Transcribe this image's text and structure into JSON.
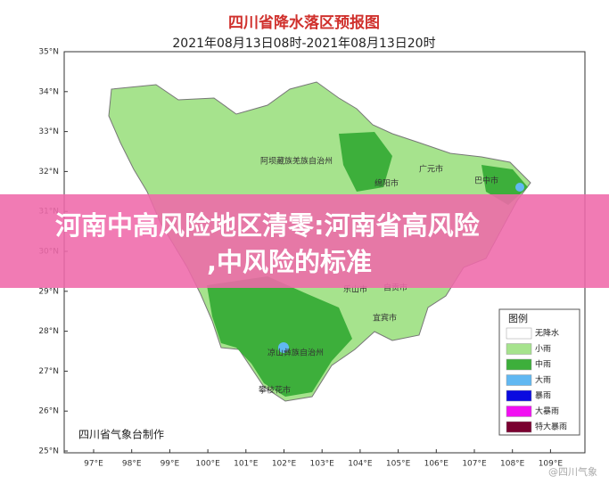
{
  "map": {
    "title": "四川省降水落区预报图",
    "subtitle": "2021年08月13日08时-2021年08月13日20时",
    "lat_labels": [
      "35°N",
      "34°N",
      "33°N",
      "32°N",
      "31°N",
      "30°N",
      "29°N",
      "28°N",
      "27°N",
      "26°N",
      "25°N"
    ],
    "lon_labels": [
      "97°E",
      "98°E",
      "99°E",
      "100°E",
      "101°E",
      "102°E",
      "103°E",
      "104°E",
      "105°E",
      "106°E",
      "107°E",
      "108°E",
      "109°E"
    ],
    "places": [
      "阿坝藏族羌族自治州",
      "广元市",
      "绵阳市",
      "巴中市",
      "乐山市",
      "自贡市",
      "宜宾市",
      "凉山彝族自治州",
      "攀枝花市"
    ],
    "credit": "四川省气象台制作"
  },
  "legend": {
    "title": "图例",
    "items": [
      {
        "label": "无降水",
        "color": "#ffffff"
      },
      {
        "label": "小雨",
        "color": "#a6e38d"
      },
      {
        "label": "中雨",
        "color": "#3daf3b"
      },
      {
        "label": "大雨",
        "color": "#61b8f2"
      },
      {
        "label": "暴雨",
        "color": "#0a0ae0"
      },
      {
        "label": "大暴雨",
        "color": "#f20ff2"
      },
      {
        "label": "特大暴雨",
        "color": "#7a0030"
      }
    ]
  },
  "banner": {
    "lines": [
      "河南中高风险地区清零:河南省高风险",
      ",中风险的标准"
    ]
  },
  "watermark": "@四川气象"
}
